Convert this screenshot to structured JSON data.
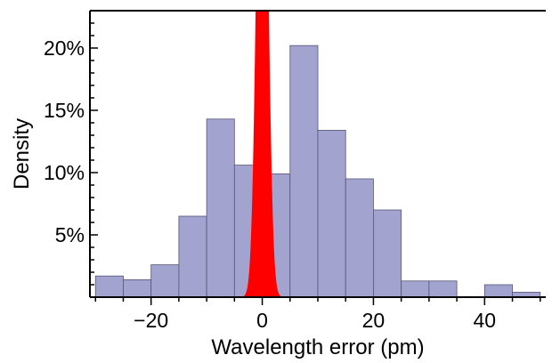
{
  "chart_data": {
    "type": "bar",
    "title": "",
    "xlabel": "Wavelength error (pm)",
    "ylabel": "Density",
    "xlim": [
      -31,
      51
    ],
    "ylim": [
      0,
      0.23
    ],
    "x_ticks": [
      -20,
      0,
      20,
      40
    ],
    "x_tick_labels": [
      "−20",
      "0",
      "20",
      "40"
    ],
    "y_ticks": [
      0.05,
      0.1,
      0.15,
      0.2
    ],
    "y_tick_labels": [
      "5%",
      "10%",
      "15%",
      "20%"
    ],
    "grid": false,
    "legend": "none",
    "histogram": {
      "bin_width": 5,
      "color": "#a2a3cf",
      "edge_color": "#555577",
      "bins": [
        {
          "start": -30,
          "end": -25,
          "density": 0.017
        },
        {
          "start": -25,
          "end": -20,
          "density": 0.014
        },
        {
          "start": -20,
          "end": -15,
          "density": 0.026
        },
        {
          "start": -15,
          "end": -10,
          "density": 0.065
        },
        {
          "start": -10,
          "end": -5,
          "density": 0.143
        },
        {
          "start": -5,
          "end": 0,
          "density": 0.106
        },
        {
          "start": 0,
          "end": 5,
          "density": 0.099
        },
        {
          "start": 5,
          "end": 10,
          "density": 0.202
        },
        {
          "start": 10,
          "end": 15,
          "density": 0.134
        },
        {
          "start": 15,
          "end": 20,
          "density": 0.095
        },
        {
          "start": 20,
          "end": 25,
          "density": 0.07
        },
        {
          "start": 25,
          "end": 30,
          "density": 0.013
        },
        {
          "start": 30,
          "end": 35,
          "density": 0.013
        },
        {
          "start": 35,
          "end": 40,
          "density": 0.0
        },
        {
          "start": 40,
          "end": 45,
          "density": 0.01
        },
        {
          "start": 45,
          "end": 50,
          "density": 0.004
        }
      ]
    },
    "overlay_curve": {
      "type": "gaussian-area",
      "color": "#ff0000",
      "mean": 0,
      "sigma": 0.9,
      "peak_clipped": true
    }
  }
}
